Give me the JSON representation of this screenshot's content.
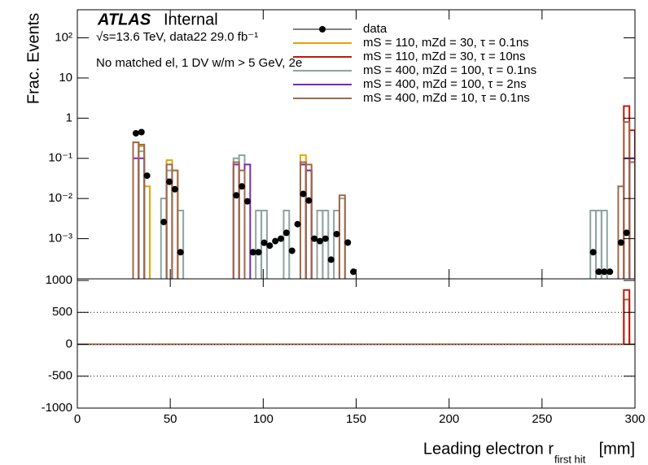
{
  "chart_data": [
    {
      "type": "step",
      "atlas": "ATLAS",
      "status": "Internal",
      "subtitle": "√s=13.6 TeV, data22 29.0 fb⁻¹",
      "selection": "No matched el, 1 DV w/m > 5 GeV, 2e",
      "ylabel": "Frac. Events",
      "log_y": true,
      "bin_width": 3,
      "xlim": [
        0,
        300
      ],
      "ylim": [
        0.0001,
        500
      ],
      "yticks": [
        {
          "value": 0.001,
          "label": "10⁻³"
        },
        {
          "value": 0.01,
          "label": "10⁻²"
        },
        {
          "value": 0.1,
          "label": "10⁻¹"
        },
        1,
        10,
        {
          "value": 100,
          "label": "10²"
        }
      ],
      "data": {
        "name": "data",
        "color": "#000000",
        "x": [
          31.5,
          34.5,
          37.5,
          46.5,
          49.5,
          52.5,
          55.5,
          85.5,
          88.5,
          91.5,
          94.5,
          97.5,
          100.5,
          103.5,
          106.5,
          109.5,
          112.5,
          115.5,
          118.5,
          121.5,
          124.5,
          127.5,
          130.5,
          133.5,
          136.5,
          139.5,
          145.5,
          148.5,
          277.5,
          280.5,
          283.5,
          286.5,
          292.5,
          295.5
        ],
        "values": [
          0.42,
          0.45,
          0.037,
          0.0026,
          0.026,
          0.017,
          0.00046,
          0.012,
          0.02,
          0.0085,
          0.00046,
          0.00046,
          0.00079,
          0.00067,
          0.00087,
          0.001,
          0.0014,
          0.0005,
          0.0023,
          0.013,
          0.0089,
          0.001,
          0.00087,
          0.001,
          0.0003,
          0.0013,
          0.0008,
          0.00015,
          0.00046,
          0.00015,
          0.00015,
          0.00015,
          0.0008,
          0.0014
        ]
      },
      "series": [
        {
          "name": "mS = 110, mZd = 30, τ = 0.1ns",
          "color": "#e8a400",
          "x": [
            34.5,
            37.5,
            49.5,
            52.5,
            88.5,
            121.5,
            124.5
          ],
          "values": [
            0.2,
            0.02,
            0.09,
            0.05,
            0.02,
            0.12,
            0.05
          ]
        },
        {
          "name": "mS = 110, mZd = 30, τ = 10ns",
          "color": "#c0180c",
          "x": [
            295.5,
            298.5
          ],
          "values": [
            2,
            0.5
          ]
        },
        {
          "name": "mS = 400, mZd = 100, τ = 0.1ns",
          "color": "#8fa3a0",
          "x": [
            31.5,
            34.5,
            46.5,
            49.5,
            55.5,
            85.5,
            88.5,
            97.5,
            100.5,
            112.5,
            121.5,
            124.5,
            130.5,
            133.5,
            139.5,
            142.5,
            277.5,
            280.5,
            283.5,
            295.5,
            298.5
          ],
          "values": [
            0.25,
            0.15,
            0.01,
            0.05,
            0.005,
            0.1,
            0.12,
            0.005,
            0.005,
            0.005,
            0.07,
            0.05,
            0.005,
            0.005,
            0.005,
            0.01,
            0.005,
            0.005,
            0.005,
            0.1,
            0.08
          ]
        },
        {
          "name": "mS = 400, mZd = 100, τ = 2ns",
          "color": "#7a28b8",
          "x": [
            31.5,
            34.5,
            49.5,
            85.5,
            91.5,
            121.5,
            124.5,
            295.5,
            298.5
          ],
          "values": [
            0.1,
            0.1,
            0.03,
            0.07,
            0.07,
            0.07,
            0.05,
            0.1,
            0.1
          ]
        },
        {
          "name": "mS = 400, mZd = 10, τ = 0.1ns",
          "color": "#a06848",
          "x": [
            31.5,
            34.5,
            49.5,
            52.5,
            85.5,
            88.5,
            121.5,
            124.5,
            142.5,
            292.5,
            295.5,
            298.5
          ],
          "values": [
            0.25,
            0.22,
            0.07,
            0.05,
            0.08,
            0.05,
            0.08,
            0.07,
            0.012,
            0.02,
            0.8,
            0.08
          ]
        }
      ]
    },
    {
      "type": "step",
      "xlabel": [
        "Leading electron r",
        "first hit",
        "[mm]"
      ],
      "bin_width": 3,
      "xlim": [
        0,
        300
      ],
      "xticks": [
        0,
        50,
        100,
        150,
        200,
        250,
        300
      ],
      "ylim": [
        -1000,
        1000
      ],
      "yticks": [
        -1000,
        -500,
        0,
        500,
        1000
      ],
      "grid": true,
      "series": [
        {
          "color": "#a06848",
          "x": [
            295.5
          ],
          "values": [
            700
          ]
        },
        {
          "color": "#c0180c",
          "x": [
            295.5
          ],
          "values": [
            850
          ]
        }
      ]
    }
  ]
}
